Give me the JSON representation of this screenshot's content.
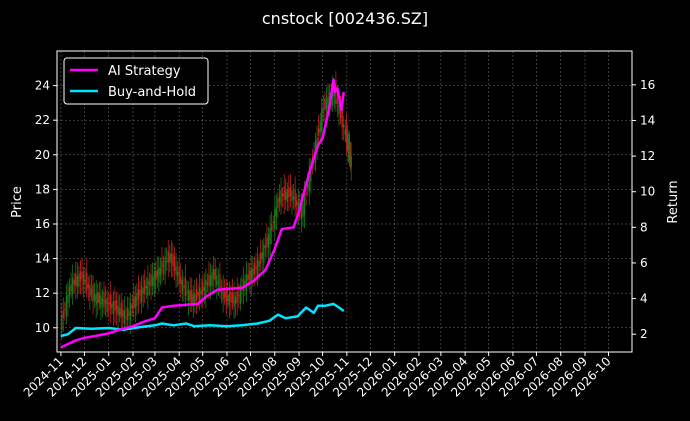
{
  "chart_data": {
    "type": "line",
    "title": "cnstock [002436.SZ]",
    "ylabel_left": "Price",
    "ylabel_right": "Return",
    "ylim_left": [
      8.6,
      26.0
    ],
    "ylim_right": [
      1.0,
      17.9
    ],
    "xlim": [
      "2024-10-27",
      "2026-10-31"
    ],
    "grid": true,
    "legend_position": "top-left",
    "x_ticks": [
      "2024-11",
      "2024-12",
      "2025-01",
      "2025-02",
      "2025-03",
      "2025-04",
      "2025-05",
      "2025-06",
      "2025-07",
      "2025-08",
      "2025-09",
      "2025-10",
      "2025-11",
      "2025-12",
      "2026-01",
      "2026-02",
      "2026-03",
      "2026-04",
      "2026-05",
      "2026-06",
      "2026-07",
      "2026-08",
      "2026-09",
      "2026-10"
    ],
    "y_ticks_left": [
      10,
      12,
      14,
      16,
      18,
      20,
      22,
      24
    ],
    "y_ticks_right": [
      2,
      4,
      6,
      8,
      10,
      12,
      14,
      16
    ],
    "colors": {
      "ai": "#ff00ff",
      "bh": "#00e5ff",
      "up": "#1a7a1a",
      "down": "#c81e1e",
      "grid": "#777777",
      "frame": "#ffffff"
    },
    "price_series": {
      "name": "Price",
      "x": [
        "2024-11-01",
        "2024-11-15",
        "2024-11-29",
        "2024-12-13",
        "2024-12-27",
        "2025-01-10",
        "2025-01-24",
        "2025-02-07",
        "2025-02-21",
        "2025-03-07",
        "2025-03-21",
        "2025-04-04",
        "2025-04-18",
        "2025-05-02",
        "2025-05-16",
        "2025-05-30",
        "2025-06-13",
        "2025-06-27",
        "2025-07-11",
        "2025-07-25",
        "2025-08-08",
        "2025-08-22",
        "2025-09-05",
        "2025-09-19",
        "2025-10-03",
        "2025-10-17",
        "2025-10-31",
        "2025-11-07"
      ],
      "values": [
        10.2,
        12.5,
        13.0,
        11.8,
        11.5,
        11.2,
        10.6,
        11.8,
        12.5,
        13.2,
        14.2,
        12.6,
        11.6,
        12.2,
        13.1,
        11.8,
        11.6,
        12.8,
        13.6,
        15.2,
        17.6,
        17.8,
        16.6,
        19.6,
        22.8,
        23.6,
        21.2,
        19.6
      ]
    },
    "series": [
      {
        "name": "AI Strategy",
        "x": [
          "2024-11-01",
          "2024-11-10",
          "2024-11-20",
          "2024-12-01",
          "2024-12-15",
          "2025-01-01",
          "2025-01-15",
          "2025-02-01",
          "2025-02-15",
          "2025-03-01",
          "2025-03-10",
          "2025-03-25",
          "2025-04-10",
          "2025-04-25",
          "2025-05-05",
          "2025-05-20",
          "2025-06-05",
          "2025-06-20",
          "2025-07-05",
          "2025-07-20",
          "2025-08-01",
          "2025-08-10",
          "2025-08-25",
          "2025-09-01",
          "2025-09-05",
          "2025-09-15",
          "2025-09-25",
          "2025-10-01",
          "2025-10-10",
          "2025-10-15",
          "2025-10-17",
          "2025-10-20",
          "2025-10-25",
          "2025-10-28"
        ],
        "values": [
          1.25,
          1.45,
          1.65,
          1.8,
          1.9,
          2.05,
          2.25,
          2.45,
          2.7,
          2.9,
          3.5,
          3.6,
          3.65,
          3.7,
          4.1,
          4.5,
          4.55,
          4.6,
          5.0,
          5.6,
          6.8,
          7.9,
          8.0,
          8.9,
          9.6,
          11.2,
          12.6,
          13.0,
          14.8,
          16.3,
          15.6,
          15.8,
          14.6,
          15.6
        ]
      },
      {
        "name": "Buy-and-Hold",
        "x": [
          "2024-11-01",
          "2024-11-10",
          "2024-11-20",
          "2024-12-10",
          "2025-01-01",
          "2025-01-20",
          "2025-02-10",
          "2025-03-01",
          "2025-03-10",
          "2025-03-25",
          "2025-04-10",
          "2025-04-20",
          "2025-05-10",
          "2025-06-01",
          "2025-06-20",
          "2025-07-10",
          "2025-07-25",
          "2025-08-05",
          "2025-08-15",
          "2025-08-30",
          "2025-09-10",
          "2025-09-20",
          "2025-09-25",
          "2025-10-05",
          "2025-10-15",
          "2025-10-22",
          "2025-10-28"
        ],
        "values": [
          1.9,
          2.0,
          2.35,
          2.3,
          2.35,
          2.25,
          2.4,
          2.5,
          2.6,
          2.5,
          2.6,
          2.45,
          2.5,
          2.45,
          2.5,
          2.6,
          2.75,
          3.1,
          2.9,
          3.0,
          3.5,
          3.2,
          3.6,
          3.6,
          3.7,
          3.5,
          3.3
        ]
      }
    ]
  }
}
